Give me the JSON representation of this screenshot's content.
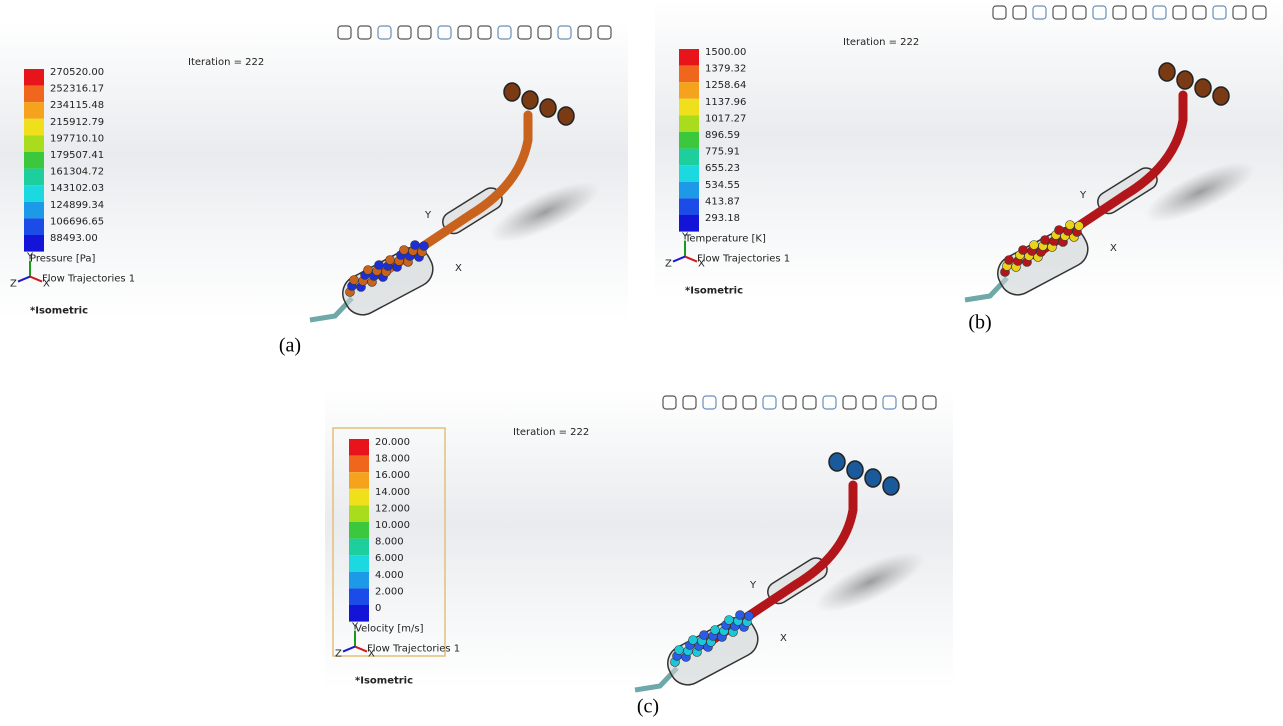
{
  "panels": [
    {
      "caption": "(a)",
      "iteration": "Iteration = 222",
      "legend_title": "Pressure [Pa]",
      "legend_values": [
        "270520.00",
        "252316.17",
        "234115.48",
        "215912.79",
        "197710.10",
        "179507.41",
        "161304.72",
        "143102.03",
        "124899.34",
        "106696.65",
        "88493.00"
      ],
      "trajectory_label": "Flow Trajectories 1",
      "view_label": "*Isometric",
      "axes": {
        "x": "X",
        "y": "Y",
        "z": "Z"
      }
    },
    {
      "caption": "(b)",
      "iteration": "Iteration = 222",
      "legend_title": "Temperature [K]",
      "legend_values": [
        "1500.00",
        "1379.32",
        "1258.64",
        "1137.96",
        "1017.27",
        "896.59",
        "775.91",
        "655.23",
        "534.55",
        "413.87",
        "293.18"
      ],
      "trajectory_label": "Flow Trajectories 1",
      "view_label": "*Isometric",
      "axes": {
        "x": "X",
        "y": "Y",
        "z": "Z"
      }
    },
    {
      "caption": "(c)",
      "iteration": "Iteration = 222",
      "legend_title": "Velocity [m/s]",
      "legend_values": [
        "20.000",
        "18.000",
        "16.000",
        "14.000",
        "12.000",
        "10.000",
        "8.000",
        "6.000",
        "4.000",
        "2.000",
        "0"
      ],
      "trajectory_label": "Flow Trajectories 1",
      "view_label": "*Isometric",
      "axes": {
        "x": "X",
        "y": "Y",
        "z": "Z"
      }
    }
  ]
}
